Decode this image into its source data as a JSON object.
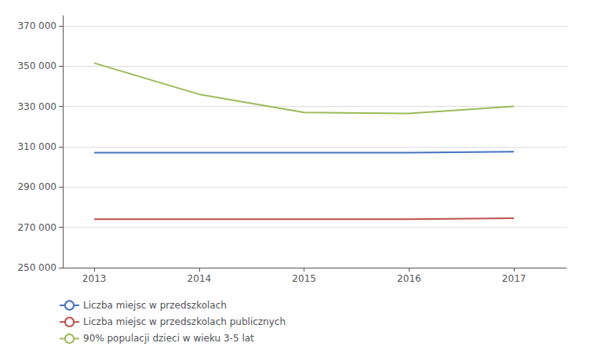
{
  "chart_data": {
    "type": "line",
    "x": [
      2013,
      2014,
      2015,
      2016,
      2017
    ],
    "series": [
      {
        "name": "Liczba miejsc w przedszkolach",
        "color": "#4472c4",
        "values": [
          307000,
          307000,
          307000,
          307000,
          307500
        ]
      },
      {
        "name": "Liczba miejsc w przedszkolach publicznych",
        "color": "#c0504d",
        "values": [
          274000,
          274000,
          274000,
          274000,
          274500
        ]
      },
      {
        "name": "90% populacji dzieci w wieku 3-5 lat",
        "color": "#9bbb59",
        "values": [
          351500,
          336000,
          327000,
          326500,
          330000
        ]
      }
    ],
    "xlim": [
      2012.7,
      2017.5
    ],
    "xticks": [
      2013,
      2014,
      2015,
      2016,
      2017
    ],
    "ylim": [
      250000,
      375000
    ],
    "yticks": [
      {
        "value": 250000,
        "label": "250 000"
      },
      {
        "value": 270000,
        "label": "270 000"
      },
      {
        "value": 290000,
        "label": "290 000"
      },
      {
        "value": 310000,
        "label": "310 000"
      },
      {
        "value": 330000,
        "label": "330 000"
      },
      {
        "value": 350000,
        "label": "350 000"
      },
      {
        "value": 370000,
        "label": "370 000"
      }
    ],
    "grid": true,
    "legend": "lower left"
  }
}
